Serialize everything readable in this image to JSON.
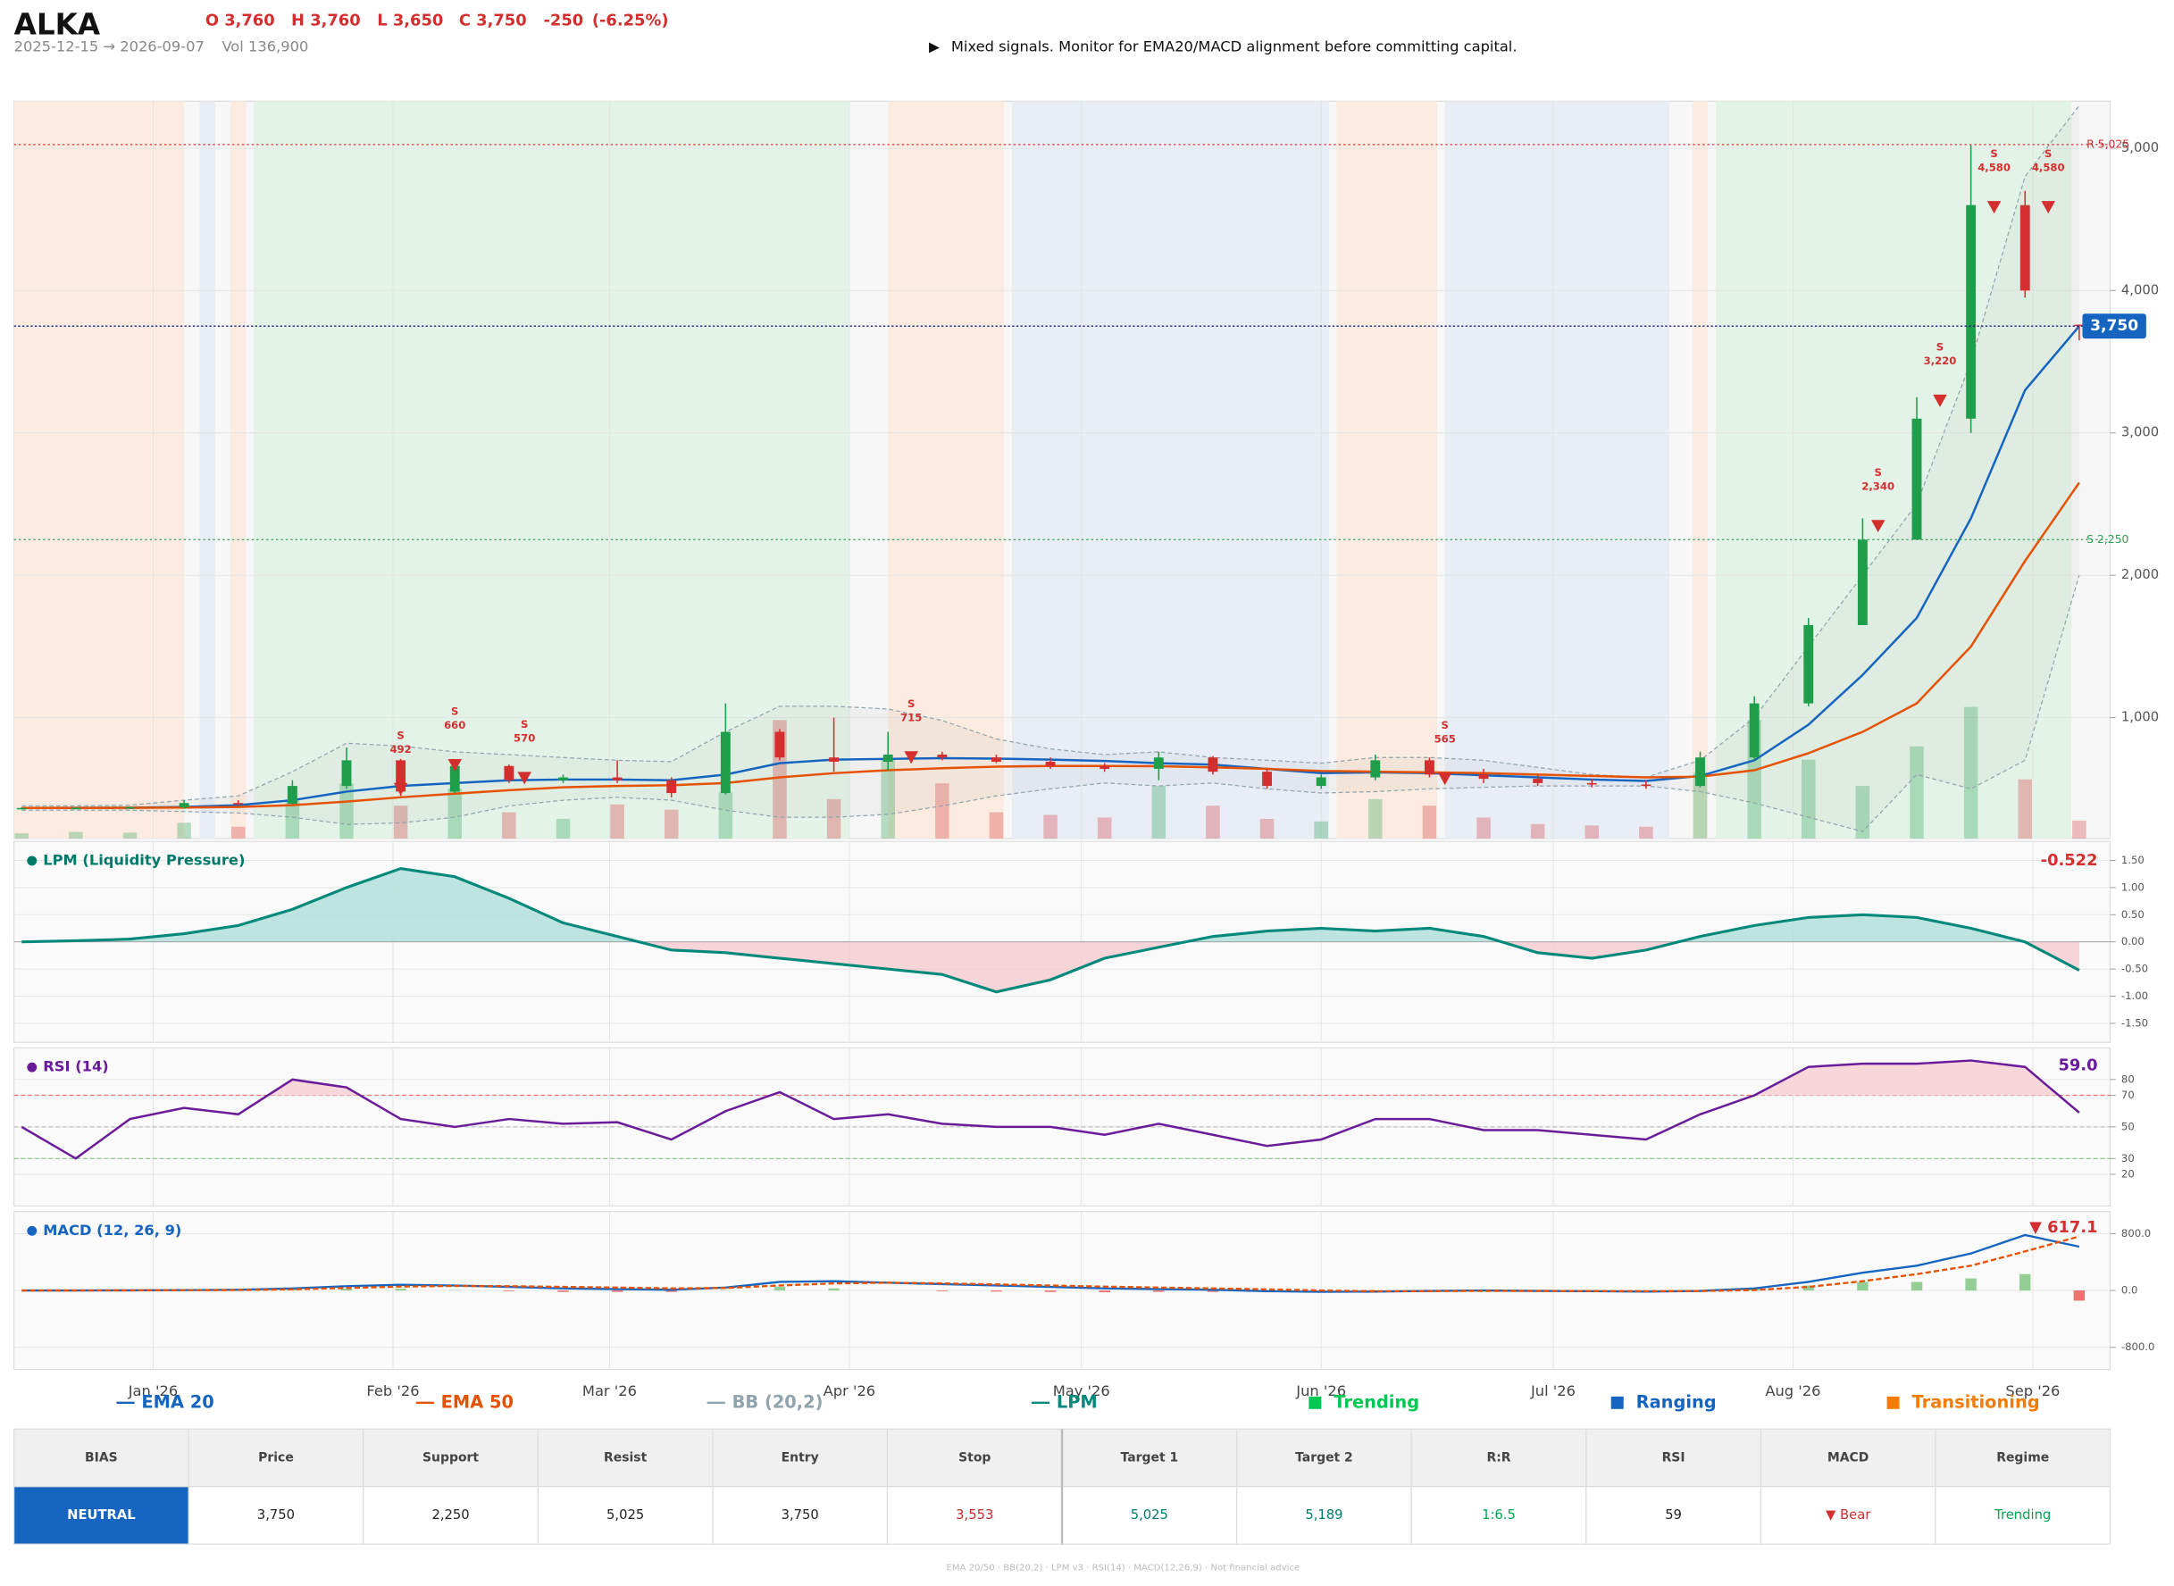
{
  "header": {
    "symbol": "ALKA",
    "ohlc": [
      "O 3,760",
      "H 3,760",
      "L 3,650",
      "C 3,750"
    ],
    "change": "-250",
    "change_pct": "(-6.25%)",
    "range": "2025-12-15 → 2026-09-07",
    "volume": "Vol 136,900",
    "message_icon": "▶",
    "message": "Mixed signals. Monitor for EMA20/MACD alignment before committing capital."
  },
  "chart_data": [
    {
      "type": "candlestick",
      "x": [
        "2025-12-15",
        "2025-12-22",
        "2025-12-29",
        "2026-01-05",
        "2026-01-12",
        "2026-01-19",
        "2026-01-26",
        "2026-02-02",
        "2026-02-09",
        "2026-02-16",
        "2026-02-23",
        "2026-03-02",
        "2026-03-09",
        "2026-03-16",
        "2026-03-23",
        "2026-03-30",
        "2026-04-06",
        "2026-04-13",
        "2026-04-20",
        "2026-04-27",
        "2026-05-04",
        "2026-05-11",
        "2026-05-18",
        "2026-05-25",
        "2026-06-01",
        "2026-06-08",
        "2026-06-15",
        "2026-06-22",
        "2026-06-29",
        "2026-07-06",
        "2026-07-13",
        "2026-07-20",
        "2026-07-27",
        "2026-08-03",
        "2026-08-10",
        "2026-08-17",
        "2026-08-24",
        "2026-08-31",
        "2026-09-07"
      ],
      "open": [
        365,
        365,
        366,
        370,
        400,
        395,
        520,
        700,
        480,
        660,
        560,
        580,
        560,
        470,
        900,
        720,
        690,
        740,
        720,
        690,
        660,
        640,
        720,
        620,
        520,
        580,
        700,
        600,
        570,
        540,
        530,
        520,
        720,
        1100,
        1650,
        2250,
        3100,
        4600,
        3760
      ],
      "high": [
        370,
        372,
        375,
        420,
        420,
        560,
        790,
        710,
        680,
        670,
        600,
        700,
        580,
        1100,
        920,
        1000,
        900,
        760,
        740,
        720,
        680,
        760,
        730,
        640,
        600,
        740,
        720,
        640,
        600,
        570,
        560,
        760,
        1150,
        1700,
        2400,
        3250,
        5020,
        4700,
        3760
      ],
      "low": [
        360,
        360,
        362,
        360,
        385,
        390,
        500,
        450,
        470,
        540,
        540,
        540,
        440,
        460,
        700,
        620,
        630,
        700,
        680,
        640,
        620,
        560,
        600,
        500,
        500,
        560,
        580,
        540,
        520,
        510,
        500,
        510,
        700,
        1080,
        1650,
        2250,
        3000,
        3950,
        3650
      ],
      "close": [
        365,
        366,
        370,
        400,
        395,
        520,
        700,
        480,
        660,
        560,
        580,
        560,
        470,
        900,
        720,
        690,
        740,
        720,
        690,
        660,
        640,
        720,
        620,
        520,
        580,
        700,
        600,
        570,
        540,
        530,
        520,
        720,
        1100,
        1650,
        2250,
        3100,
        4600,
        4000,
        3750
      ],
      "volume": [
        40000,
        50000,
        45000,
        120000,
        90000,
        300000,
        420000,
        250000,
        380000,
        200000,
        150000,
        260000,
        220000,
        350000,
        900000,
        300000,
        600000,
        420000,
        200000,
        180000,
        160000,
        400000,
        250000,
        150000,
        130000,
        300000,
        250000,
        160000,
        110000,
        100000,
        90000,
        500000,
        900000,
        600000,
        400000,
        700000,
        1000000,
        450000,
        136900
      ],
      "up_color": "#1e9e4a",
      "down_color": "#d32f2f",
      "series": [
        {
          "name": "EMA 20",
          "color": "#1565c0",
          "values": [
            365,
            366,
            367,
            372,
            385,
            420,
            480,
            520,
            540,
            560,
            565,
            565,
            560,
            600,
            680,
            705,
            710,
            715,
            712,
            705,
            695,
            680,
            670,
            640,
            610,
            615,
            610,
            595,
            580,
            565,
            555,
            590,
            700,
            950,
            1300,
            1700,
            2400,
            3300,
            3750
          ]
        },
        {
          "name": "EMA 50",
          "color": "#e65100",
          "values": [
            365,
            365,
            366,
            368,
            372,
            385,
            410,
            440,
            465,
            490,
            510,
            520,
            525,
            540,
            580,
            610,
            630,
            645,
            655,
            660,
            660,
            658,
            650,
            640,
            625,
            620,
            615,
            610,
            600,
            590,
            580,
            585,
            630,
            750,
            900,
            1100,
            1500,
            2100,
            2650
          ]
        },
        {
          "name": "BB (20,2)",
          "color": "#90a4ae",
          "upper": [
            380,
            380,
            385,
            420,
            450,
            620,
            820,
            800,
            760,
            740,
            720,
            700,
            690,
            900,
            1080,
            1080,
            1060,
            980,
            850,
            780,
            740,
            760,
            720,
            700,
            680,
            720,
            720,
            700,
            650,
            600,
            580,
            700,
            1000,
            1500,
            2000,
            2500,
            3500,
            4800,
            5300
          ],
          "lower": [
            350,
            350,
            350,
            340,
            330,
            300,
            250,
            260,
            300,
            380,
            420,
            440,
            420,
            350,
            300,
            300,
            320,
            380,
            450,
            500,
            540,
            520,
            540,
            500,
            470,
            480,
            500,
            510,
            520,
            520,
            520,
            480,
            400,
            300,
            200,
            600,
            500,
            700,
            2000
          ]
        }
      ],
      "ylim": [
        150,
        5330
      ],
      "yticks": [
        {
          "value": 1000,
          "label": "1,000"
        },
        {
          "value": 2000,
          "label": "2,000"
        },
        {
          "value": 3000,
          "label": "3,000"
        },
        {
          "value": 4000,
          "label": "4,000"
        },
        {
          "value": 5000,
          "label": "5,000"
        }
      ],
      "grid": true,
      "levels": [
        {
          "value": 5025,
          "label": "R 5,025",
          "color": "#d32f2f"
        },
        {
          "value": 2250,
          "label": "S 2,250",
          "color": "#2e9e5b"
        }
      ],
      "current": {
        "value": 3750,
        "label": "3,750",
        "color": "#1565c0"
      },
      "signal_label": "S",
      "signal_color": "#d32f2f",
      "signals": [
        {
          "x": "2026-02-02",
          "value": 492
        },
        {
          "x": "2026-02-09",
          "value": 660
        },
        {
          "x": "2026-02-18",
          "value": 570
        },
        {
          "x": "2026-04-09",
          "value": 715
        },
        {
          "x": "2026-06-17",
          "value": 565
        },
        {
          "x": "2026-08-12",
          "value": 2340,
          "value_label": "2,340"
        },
        {
          "x": "2026-08-20",
          "value": 3220,
          "value_label": "3,220"
        },
        {
          "x": "2026-08-27",
          "value": 4580,
          "value_label": "4,580"
        },
        {
          "x": "2026-09-03",
          "value": 4580,
          "value_label": "4,580"
        }
      ],
      "regime_types": [
        {
          "name": "Trending",
          "color": "#00c853",
          "fill": "#e4f3e8"
        },
        {
          "name": "Ranging",
          "color": "#1565c0",
          "fill": "#e9edf6"
        },
        {
          "name": "Transitioning",
          "color": "#f57c00",
          "fill": "#fbebe0"
        }
      ],
      "regimes": [
        {
          "start": "2025-12-14",
          "end": "2026-01-05",
          "regime": "Transitioning"
        },
        {
          "start": "2026-01-07",
          "end": "2026-01-09",
          "regime": "Ranging"
        },
        {
          "start": "2026-01-11",
          "end": "2026-01-13",
          "regime": "Transitioning"
        },
        {
          "start": "2026-01-14",
          "end": "2026-04-01",
          "regime": "Trending"
        },
        {
          "start": "2026-04-06",
          "end": "2026-04-21",
          "regime": "Transitioning"
        },
        {
          "start": "2026-04-22",
          "end": "2026-06-02",
          "regime": "Ranging"
        },
        {
          "start": "2026-06-03",
          "end": "2026-06-16",
          "regime": "Transitioning"
        },
        {
          "start": "2026-06-17",
          "end": "2026-07-16",
          "regime": "Ranging"
        },
        {
          "start": "2026-07-19",
          "end": "2026-07-21",
          "regime": "Transitioning"
        },
        {
          "start": "2026-07-22",
          "end": "2026-09-06",
          "regime": "Trending"
        }
      ]
    },
    {
      "type": "area",
      "title": "LPM (Liquidity Pressure)",
      "title_color": "#00796b",
      "series": [
        {
          "name": "LPM",
          "color": "#00897b",
          "values": [
            0,
            0.02,
            0.05,
            0.15,
            0.3,
            0.6,
            1.0,
            1.35,
            1.2,
            0.8,
            0.35,
            0.1,
            -0.15,
            -0.2,
            -0.3,
            -0.4,
            -0.5,
            -0.6,
            -0.92,
            -0.7,
            -0.3,
            -0.1,
            0.1,
            0.2,
            0.25,
            0.2,
            0.25,
            0.1,
            -0.2,
            -0.3,
            -0.15,
            0.1,
            0.3,
            0.45,
            0.5,
            0.45,
            0.25,
            0,
            -0.522
          ]
        }
      ],
      "positive_fill": "#b2dfdb",
      "negative_fill": "#f5cdd0",
      "last_color": "#d32f2f",
      "ylim": [
        -1.85,
        1.85
      ],
      "yticks": [
        {
          "value": 1.5,
          "label": "1.50"
        },
        {
          "value": 1,
          "label": "1.00"
        },
        {
          "value": 0.5,
          "label": "0.50"
        },
        {
          "value": 0,
          "label": "0.00"
        },
        {
          "value": -0.5,
          "label": "-0.50"
        },
        {
          "value": -1,
          "label": "-1.00"
        },
        {
          "value": -1.5,
          "label": "-1.50"
        }
      ],
      "grid": true
    },
    {
      "type": "line",
      "title": "RSI (14)",
      "title_color": "#6a1b9a",
      "series": [
        {
          "color": "#6a1b9a",
          "values": [
            50,
            30,
            55,
            62,
            58,
            80,
            75,
            55,
            50,
            55,
            52,
            53,
            42,
            60,
            72,
            55,
            58,
            52,
            50,
            50,
            45,
            52,
            45,
            38,
            42,
            55,
            55,
            48,
            48,
            45,
            42,
            58,
            70,
            88,
            90,
            90,
            92,
            88,
            59
          ]
        }
      ],
      "overbought_fill": "#f8d7da",
      "reference_lines": [
        {
          "value": 70,
          "color": "#e57373"
        },
        {
          "value": 50,
          "color": "#bdbdbd"
        },
        {
          "value": 30,
          "color": "#81c784"
        }
      ],
      "current": {
        "value": 59,
        "label": "59.0",
        "color": "#6a1b9a"
      },
      "ylim": [
        0,
        100
      ],
      "yticks": [
        20,
        30,
        50,
        70,
        80
      ],
      "grid": true
    },
    {
      "type": "macd",
      "title": "MACD (12, 26, 9)",
      "title_color": "#1565c0",
      "series": [
        {
          "color": "#1565c0",
          "values": [
            0,
            0,
            2,
            5,
            10,
            30,
            60,
            80,
            70,
            50,
            30,
            20,
            10,
            40,
            120,
            130,
            110,
            90,
            70,
            50,
            30,
            20,
            10,
            -10,
            -20,
            -15,
            -5,
            0,
            -5,
            -10,
            -15,
            -5,
            30,
            120,
            250,
            350,
            520,
            780,
            617.1
          ]
        },
        {
          "color": "#e65100",
          "dashed": true,
          "values": [
            0,
            0,
            1,
            3,
            6,
            15,
            35,
            55,
            65,
            60,
            50,
            40,
            30,
            35,
            70,
            100,
            110,
            100,
            85,
            70,
            55,
            40,
            30,
            15,
            0,
            -10,
            -10,
            -5,
            -5,
            -8,
            -10,
            -8,
            5,
            50,
            130,
            230,
            350,
            550,
            760
          ]
        },
        {
          "type": "bar",
          "color": "#66bb6a",
          "negative_color": "#e53935",
          "values": [
            0,
            0,
            1,
            2,
            4,
            15,
            25,
            25,
            5,
            -10,
            -20,
            -20,
            -20,
            5,
            50,
            30,
            0,
            -10,
            -15,
            -20,
            -25,
            -20,
            -20,
            -25,
            -20,
            -5,
            5,
            5,
            0,
            -2,
            -5,
            3,
            25,
            70,
            120,
            120,
            170,
            230,
            -142.9
          ]
        }
      ],
      "current": {
        "value": 617.1,
        "label": "▼ 617.1",
        "color": "#d32f2f"
      },
      "ylim": [
        -1112,
        1112
      ],
      "yticks": [
        {
          "value": 800,
          "label": "800.0"
        },
        {
          "value": 0,
          "label": "0.0"
        },
        {
          "value": -800,
          "label": "-800.0"
        }
      ],
      "grid": true,
      "xlim": [
        "2025-12-14",
        "2026-09-11"
      ],
      "xticks": [
        {
          "value": "2026-01-01",
          "label": "Jan '26"
        },
        {
          "value": "2026-02-01",
          "label": "Feb '26"
        },
        {
          "value": "2026-03-01",
          "label": "Mar '26"
        },
        {
          "value": "2026-04-01",
          "label": "Apr '26"
        },
        {
          "value": "2026-05-01",
          "label": "May '26"
        },
        {
          "value": "2026-06-01",
          "label": "Jun '26"
        },
        {
          "value": "2026-07-01",
          "label": "Jul '26"
        },
        {
          "value": "2026-08-01",
          "label": "Aug '26"
        },
        {
          "value": "2026-09-01",
          "label": "Sep '26"
        }
      ]
    }
  ],
  "table": {
    "columns": [
      "BIAS",
      "Price",
      "Support",
      "Resist",
      "Entry",
      "Stop",
      "Target 1",
      "Target 2",
      "R:R",
      "RSI",
      "MACD",
      "Regime"
    ],
    "rows": [
      [
        "NEUTRAL",
        "3,750",
        "2,250",
        "5,025",
        "3,750",
        "3,553",
        "5,025",
        "5,189",
        "1:6.5",
        "59",
        "▼ Bear",
        "Trending"
      ]
    ],
    "value_colors": [
      "#ffffff",
      "#222222",
      "#222222",
      "#222222",
      "#222222",
      "#c62828",
      "#00796b",
      "#00796b",
      "#00a651",
      "#222222",
      "#d32f2f",
      "#00a651"
    ],
    "bias_fill": "#1565c0"
  },
  "footer": "EMA 20/50 · BB(20,2) · LPM v3 · RSI(14) · MACD(12,26,9) · Not financial advice"
}
